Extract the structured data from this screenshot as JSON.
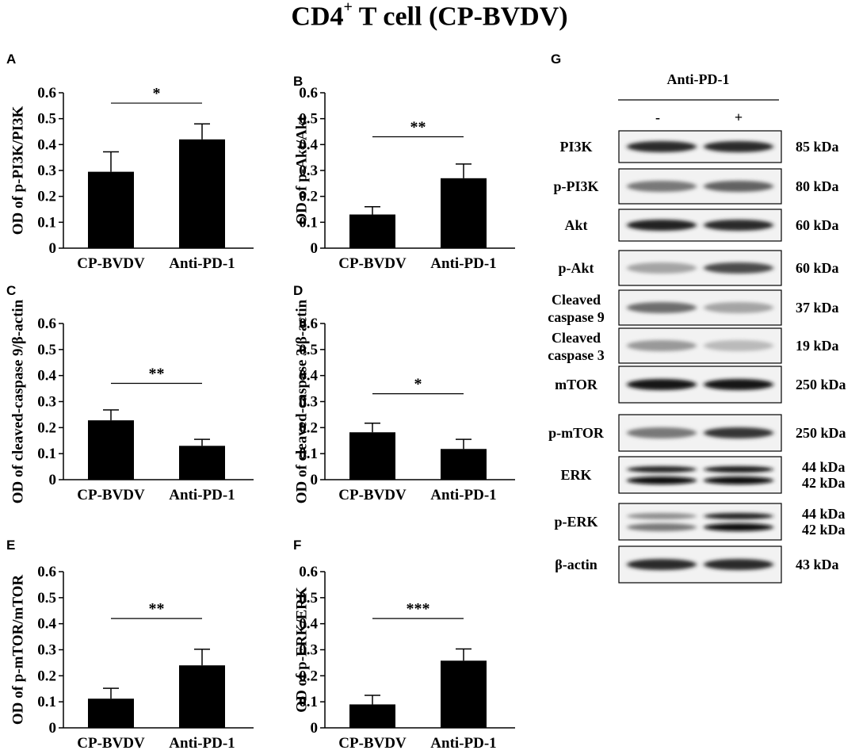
{
  "figure": {
    "title_main": "CD4",
    "title_sup": "+",
    "title_rest": " T cell (CP-BVDV)"
  },
  "chart_data": [
    {
      "panel": "A",
      "type": "bar",
      "categories": [
        "CP-BVDV",
        "Anti-PD-1"
      ],
      "values": [
        0.295,
        0.42
      ],
      "errors": [
        0.077,
        0.06
      ],
      "ylabel": "OD of p-PI3K/PI3K",
      "ylim": [
        0,
        0.6
      ],
      "yticks": [
        "0",
        "0.1",
        "0.2",
        "0.3",
        "0.4",
        "0.5",
        "0.6"
      ],
      "significance": "*",
      "sig_y": 0.56
    },
    {
      "panel": "B",
      "type": "bar",
      "categories": [
        "CP-BVDV",
        "Anti-PD-1"
      ],
      "values": [
        0.13,
        0.27
      ],
      "errors": [
        0.03,
        0.055
      ],
      "ylabel": "OD of p-Akt/Akt",
      "ylim": [
        0,
        0.6
      ],
      "yticks": [
        "0",
        "0.1",
        "0.2",
        "0.3",
        "0.4",
        "0.5",
        "0.6"
      ],
      "significance": "**",
      "sig_y": 0.43
    },
    {
      "panel": "C",
      "type": "bar",
      "categories": [
        "CP-BVDV",
        "Anti-PD-1"
      ],
      "values": [
        0.228,
        0.13
      ],
      "errors": [
        0.04,
        0.025
      ],
      "ylabel": "OD of cleaved-caspase 9/β-actin",
      "ylim": [
        0,
        0.6
      ],
      "yticks": [
        "0",
        "0.1",
        "0.2",
        "0.3",
        "0.4",
        "0.5",
        "0.6"
      ],
      "significance": "**",
      "sig_y": 0.37
    },
    {
      "panel": "D",
      "type": "bar",
      "categories": [
        "CP-BVDV",
        "Anti-PD-1"
      ],
      "values": [
        0.182,
        0.118
      ],
      "errors": [
        0.035,
        0.037
      ],
      "ylabel": "OD of cleaved-caspase 3/β-actin",
      "ylim": [
        0,
        0.6
      ],
      "yticks": [
        "0",
        "0.1",
        "0.2",
        "0.3",
        "0.4",
        "0.5",
        "0.6"
      ],
      "significance": "*",
      "sig_y": 0.33
    },
    {
      "panel": "E",
      "type": "bar",
      "categories": [
        "CP-BVDV",
        "Anti-PD-1"
      ],
      "values": [
        0.112,
        0.24
      ],
      "errors": [
        0.04,
        0.062
      ],
      "ylabel": "OD of p-mTOR/mTOR",
      "ylim": [
        0,
        0.6
      ],
      "yticks": [
        "0",
        "0.1",
        "0.2",
        "0.3",
        "0.4",
        "0.5",
        "0.6"
      ],
      "significance": "**",
      "sig_y": 0.42
    },
    {
      "panel": "F",
      "type": "bar",
      "categories": [
        "CP-BVDV",
        "Anti-PD-1"
      ],
      "values": [
        0.09,
        0.258
      ],
      "errors": [
        0.035,
        0.045
      ],
      "ylabel": "OD of p-ERK/ERK",
      "ylim": [
        0,
        0.6
      ],
      "yticks": [
        "0",
        "0.1",
        "0.2",
        "0.3",
        "0.4",
        "0.5",
        "0.6"
      ],
      "significance": "***",
      "sig_y": 0.42
    }
  ],
  "blot": {
    "panel": "G",
    "header": "Anti-PD-1",
    "lane_minus": "-",
    "lane_plus": "+",
    "rows": [
      {
        "label": [
          "PI3K"
        ],
        "kda": [
          "85 kDa"
        ],
        "bands": 1,
        "int_minus": 0.85,
        "int_plus": 0.85
      },
      {
        "label": [
          "p-PI3K"
        ],
        "kda": [
          "80 kDa"
        ],
        "bands": 1,
        "int_minus": 0.5,
        "int_plus": 0.6
      },
      {
        "label": [
          "Akt"
        ],
        "kda": [
          "60 kDa"
        ],
        "bands": 1,
        "int_minus": 0.9,
        "int_plus": 0.85
      },
      {
        "label": [
          "p-Akt"
        ],
        "kda": [
          "60 kDa"
        ],
        "bands": 1,
        "int_minus": 0.3,
        "int_plus": 0.7
      },
      {
        "label": [
          "Cleaved",
          "caspase 9"
        ],
        "kda": [
          "37 kDa"
        ],
        "bands": 1,
        "int_minus": 0.55,
        "int_plus": 0.3
      },
      {
        "label": [
          "Cleaved",
          "caspase 3"
        ],
        "kda": [
          "19 kDa"
        ],
        "bands": 1,
        "int_minus": 0.35,
        "int_plus": 0.2
      },
      {
        "label": [
          "mTOR"
        ],
        "kda": [
          "250 kDa"
        ],
        "bands": 1,
        "int_minus": 0.95,
        "int_plus": 0.95
      },
      {
        "label": [
          "p-mTOR"
        ],
        "kda": [
          "250 kDa"
        ],
        "bands": 1,
        "int_minus": 0.5,
        "int_plus": 0.8
      },
      {
        "label": [
          "ERK"
        ],
        "kda": [
          "44 kDa",
          "42 kDa"
        ],
        "bands": 2,
        "int_minus": 0.9,
        "int_plus": 0.95
      },
      {
        "label": [
          "p-ERK"
        ],
        "kda": [
          "44 kDa",
          "42 kDa"
        ],
        "bands": 2,
        "int_minus": 0.4,
        "int_plus": 0.9
      },
      {
        "label": [
          "β-actin"
        ],
        "kda": [
          "43 kDa"
        ],
        "bands": 1,
        "int_minus": 0.85,
        "int_plus": 0.85
      }
    ]
  }
}
